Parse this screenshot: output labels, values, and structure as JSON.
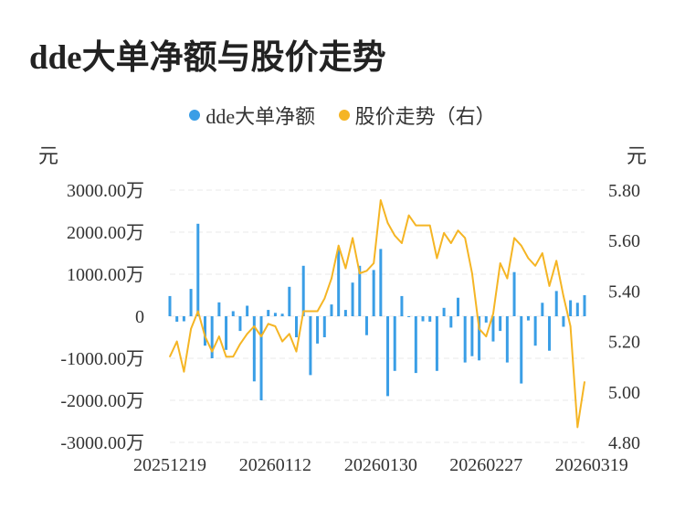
{
  "chart_data": {
    "type": "bar+line",
    "title": "dde大单净额与股价走势",
    "legend": {
      "placement": "top-center",
      "items": [
        {
          "name": "dde大单净额",
          "color": "#3a9ee6"
        },
        {
          "name": "股价走势（右）",
          "color": "#f5b524"
        }
      ]
    },
    "left_axis": {
      "unit": "元",
      "range": [
        -3000,
        3000
      ],
      "ticks": [
        {
          "value": 3000,
          "label": "3000.00万"
        },
        {
          "value": 2000,
          "label": "2000.00万"
        },
        {
          "value": 1000,
          "label": "1000.00万"
        },
        {
          "value": 0,
          "label": "0"
        },
        {
          "value": -1000,
          "label": "-1000.00万"
        },
        {
          "value": -2000,
          "label": "-2000.00万"
        },
        {
          "value": -3000,
          "label": "-3000.00万"
        }
      ]
    },
    "right_axis": {
      "unit": "元",
      "range": [
        4.8,
        5.8
      ],
      "ticks": [
        {
          "value": 5.8,
          "label": "5.80"
        },
        {
          "value": 5.6,
          "label": "5.60"
        },
        {
          "value": 5.4,
          "label": "5.40"
        },
        {
          "value": 5.2,
          "label": "5.20"
        },
        {
          "value": 5.0,
          "label": "5.00"
        },
        {
          "value": 4.8,
          "label": "4.80"
        }
      ]
    },
    "x_ticks": [
      {
        "index": 0,
        "label": "20251219"
      },
      {
        "index": 15,
        "label": "20260112"
      },
      {
        "index": 30,
        "label": "20260130"
      },
      {
        "index": 45,
        "label": "20260227"
      },
      {
        "index": 60,
        "label": "20260319"
      }
    ],
    "grid": true,
    "series": [
      {
        "name": "dde大单净额",
        "kind": "bar",
        "color": "#3a9ee6",
        "values": [
          480,
          -130,
          -120,
          650,
          2200,
          -700,
          -1000,
          330,
          -800,
          120,
          -350,
          250,
          -1550,
          -2000,
          150,
          80,
          60,
          700,
          -500,
          1200,
          -1400,
          -650,
          -500,
          280,
          1600,
          150,
          800,
          1200,
          -450,
          1100,
          1600,
          -1900,
          -1300,
          480,
          0,
          -1350,
          -120,
          -130,
          -1300,
          200,
          -270,
          440,
          -1100,
          -950,
          -1050,
          -150,
          -600,
          -350,
          -1100,
          1050,
          -1600,
          -100,
          -700,
          320,
          -820,
          600,
          -250,
          380,
          320,
          500
        ]
      },
      {
        "name": "股价走势（右）",
        "kind": "line",
        "axis": "right",
        "color": "#f5b524",
        "values": [
          5.14,
          5.2,
          5.08,
          5.25,
          5.32,
          5.22,
          5.16,
          5.22,
          5.14,
          5.14,
          5.19,
          5.23,
          5.26,
          5.22,
          5.27,
          5.26,
          5.2,
          5.23,
          5.16,
          5.32,
          5.32,
          5.32,
          5.37,
          5.45,
          5.58,
          5.49,
          5.61,
          5.47,
          5.48,
          5.51,
          5.76,
          5.67,
          5.62,
          5.59,
          5.7,
          5.66,
          5.66,
          5.66,
          5.53,
          5.63,
          5.59,
          5.64,
          5.61,
          5.47,
          5.25,
          5.22,
          5.31,
          5.51,
          5.45,
          5.61,
          5.58,
          5.53,
          5.5,
          5.55,
          5.42,
          5.52,
          5.38,
          5.26,
          4.86,
          5.04
        ]
      }
    ]
  }
}
